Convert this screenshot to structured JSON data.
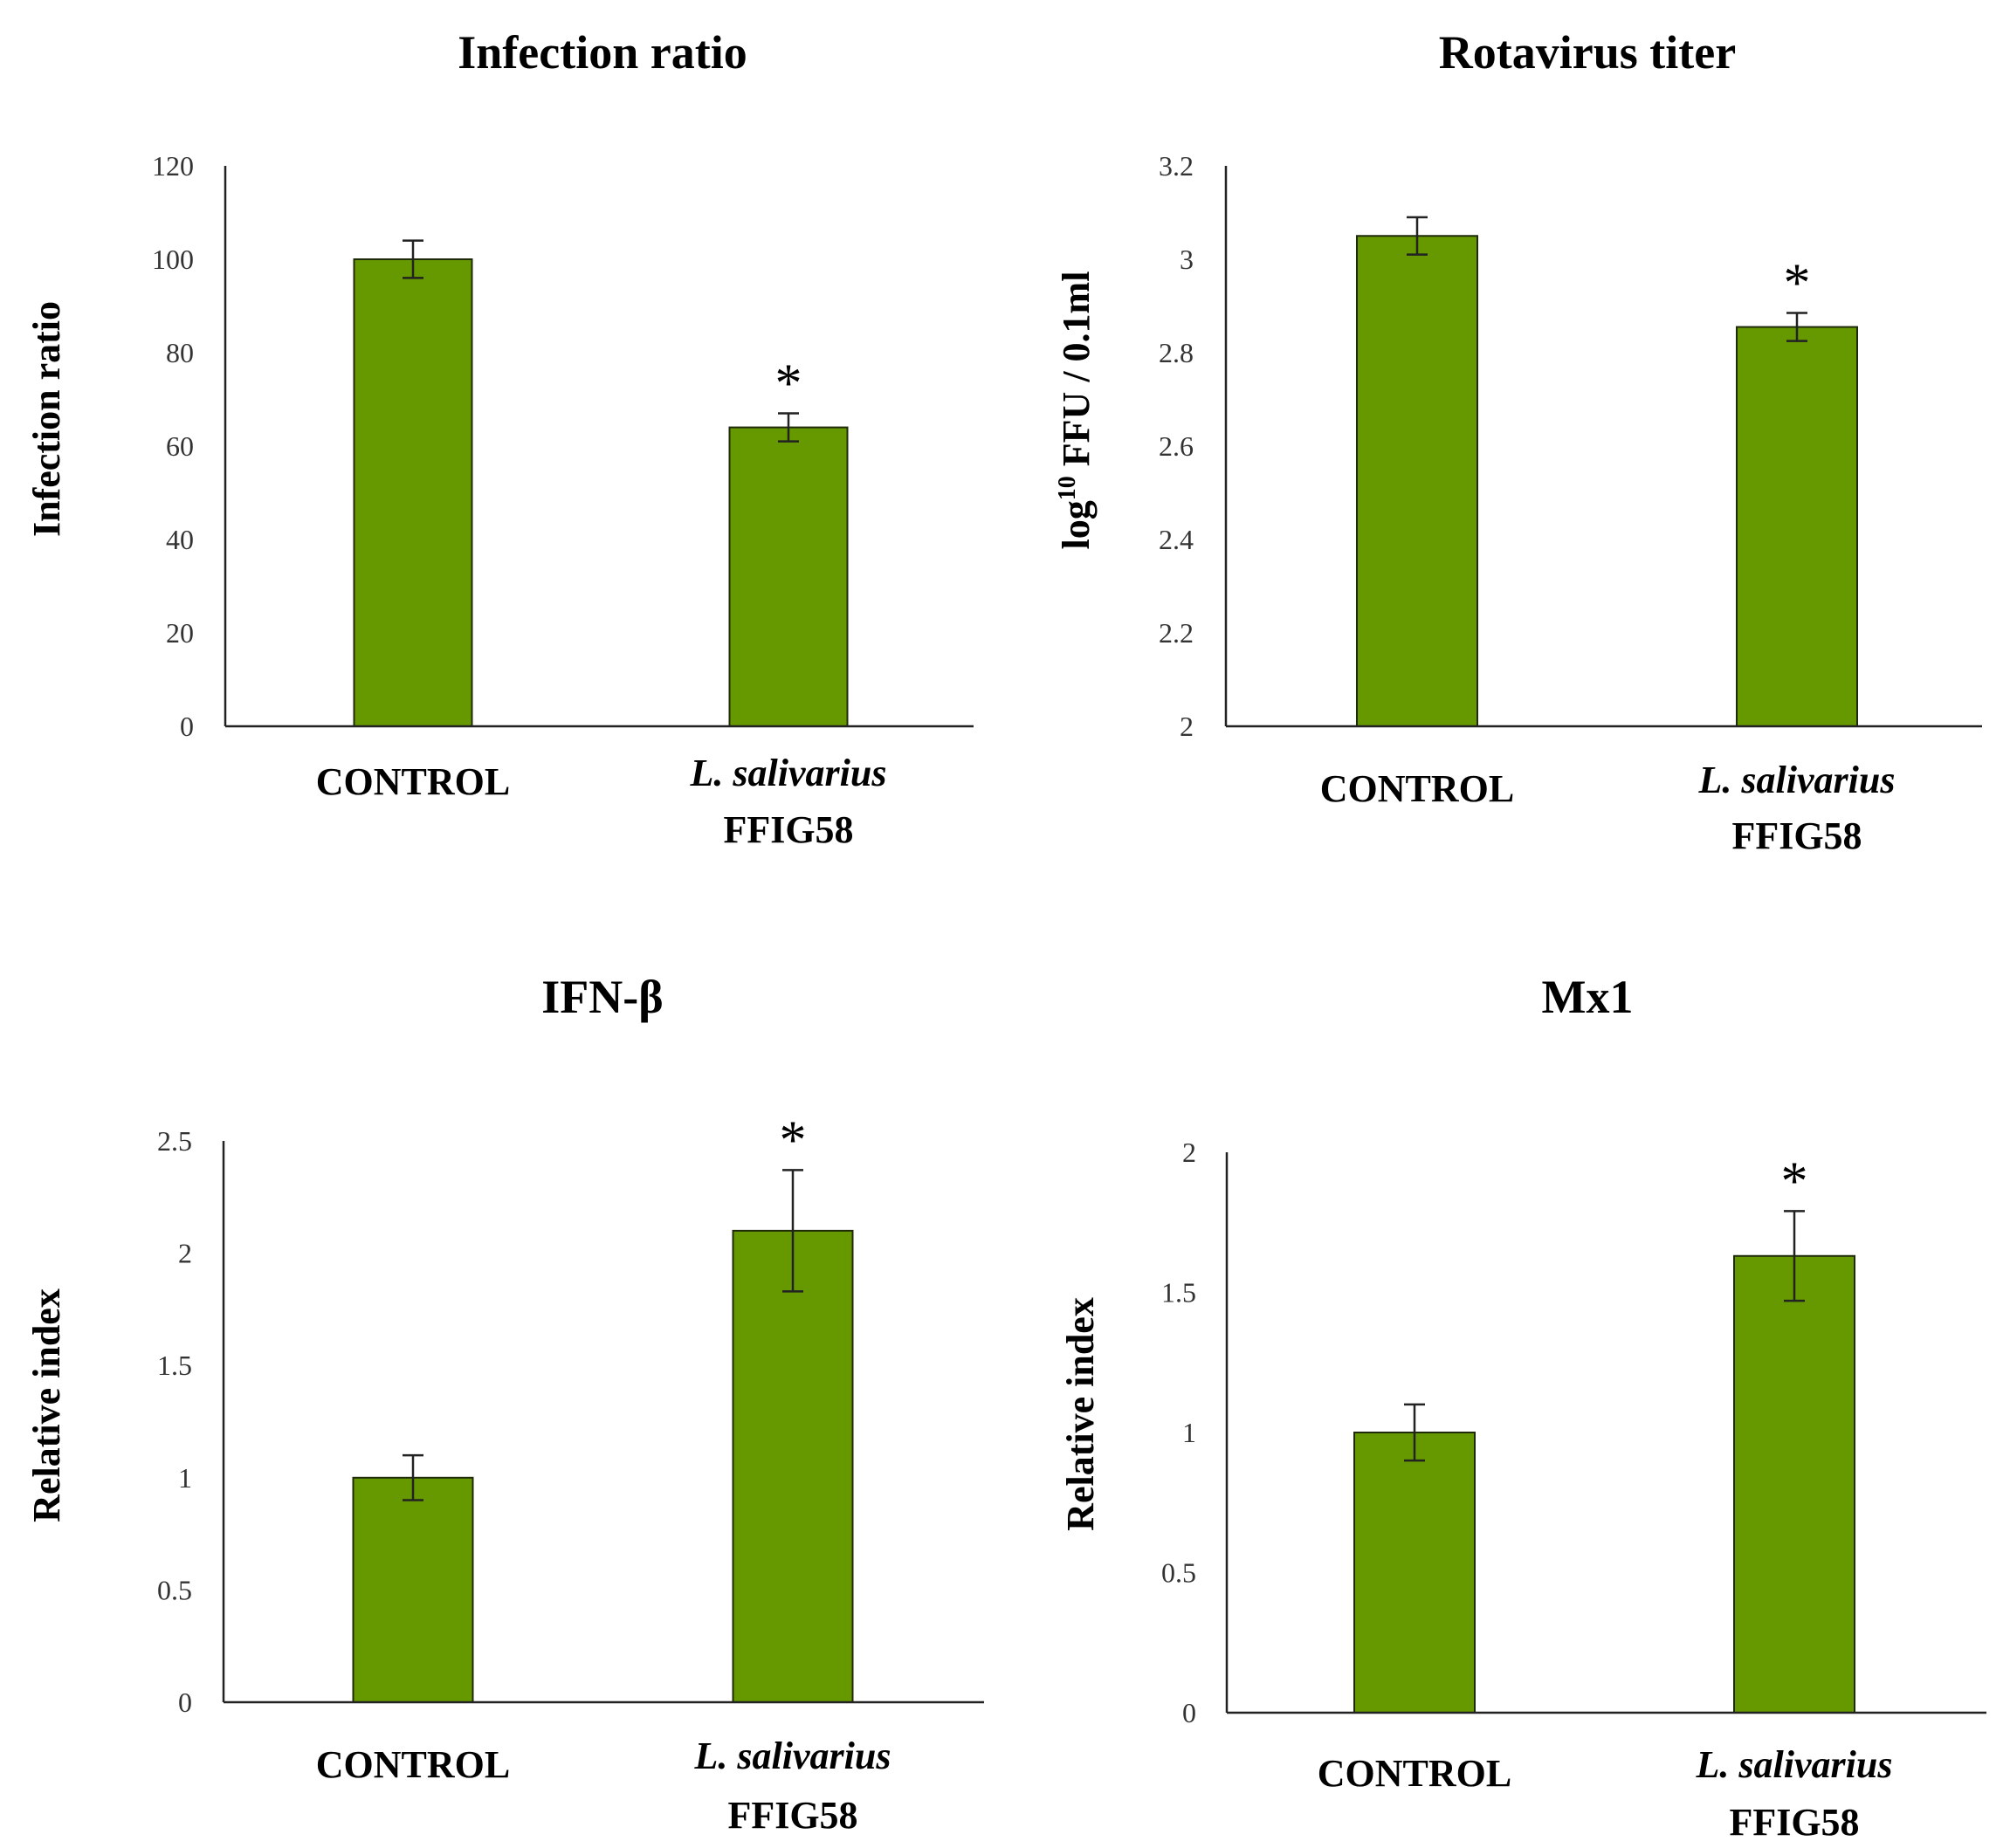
{
  "colors": {
    "bar": "#669900",
    "bar_stroke": "#1f2a0a",
    "axis": "#222222",
    "text": "#1a1a1a"
  },
  "chart_data": [
    {
      "type": "bar",
      "title": "Infection ratio",
      "ylabel": "Infection ratio",
      "ylim": [
        0,
        120
      ],
      "yticks": [
        0,
        20,
        40,
        60,
        80,
        100,
        120
      ],
      "ytick_labels": [
        "0",
        "20",
        "40",
        "60",
        "80",
        "100",
        "120"
      ],
      "categories": [
        {
          "line1": "CONTROL",
          "line2": ""
        },
        {
          "line1": "L. salivarius",
          "line2": "FFIG58"
        }
      ],
      "values": [
        100,
        64
      ],
      "errors": [
        4,
        3
      ],
      "significance": [
        "",
        "*"
      ]
    },
    {
      "type": "bar",
      "title": "Rotavirus titer",
      "ylabel_parts": {
        "pre": "log",
        "sup": "10",
        "post": " FFU / 0.1ml"
      },
      "ylim": [
        2,
        3.2
      ],
      "yticks": [
        2,
        2.2,
        2.4,
        2.6,
        2.8,
        3,
        3.2
      ],
      "ytick_labels": [
        "2",
        "2.2",
        "2.4",
        "2.6",
        "2.8",
        "3",
        "3.2"
      ],
      "categories": [
        {
          "line1": "CONTROL",
          "line2": ""
        },
        {
          "line1": "L. salivarius",
          "line2": "FFIG58"
        }
      ],
      "values": [
        3.05,
        2.855
      ],
      "errors": [
        0.04,
        0.03
      ],
      "significance": [
        "",
        "*"
      ]
    },
    {
      "type": "bar",
      "title": "IFN-β",
      "ylabel": "Relative index",
      "ylim": [
        0,
        2.5
      ],
      "yticks": [
        0,
        0.5,
        1,
        1.5,
        2,
        2.5
      ],
      "ytick_labels": [
        "0",
        "0.5",
        "1",
        "1.5",
        "2",
        "2.5"
      ],
      "categories": [
        {
          "line1": "CONTROL",
          "line2": ""
        },
        {
          "line1": "L. salivarius",
          "line2": "FFIG58"
        }
      ],
      "values": [
        1.0,
        2.1
      ],
      "errors": [
        0.1,
        0.27
      ],
      "significance": [
        "",
        "*"
      ]
    },
    {
      "type": "bar",
      "title": "Mx1",
      "ylabel": "Relative index",
      "ylim": [
        0,
        2
      ],
      "yticks": [
        0,
        0.5,
        1,
        1.5,
        2
      ],
      "ytick_labels": [
        "0",
        "0.5",
        "1",
        "1.5",
        "2"
      ],
      "categories": [
        {
          "line1": "CONTROL",
          "line2": ""
        },
        {
          "line1": "L. salivarius",
          "line2": "FFIG58"
        }
      ],
      "values": [
        1.0,
        1.63
      ],
      "errors": [
        0.1,
        0.16
      ],
      "significance": [
        "",
        "*"
      ]
    }
  ]
}
